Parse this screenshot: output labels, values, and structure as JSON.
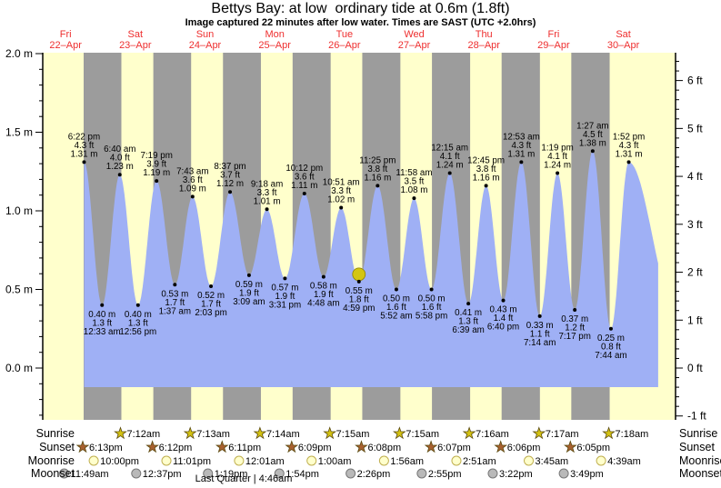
{
  "title": "Bettys Bay: at low  ordinary tide at 0.6m (1.8ft)",
  "subtitle": "Image captured 22 minutes after low water. Times are SAST (UTC +2.0hrs)",
  "colors": {
    "day_band": "#ffffcc",
    "night_band": "#9c9c9c",
    "tide_area": "#9fb0f5",
    "date_red": "#ee2e2e",
    "marker": "#d3c511",
    "marker_edge": "#8f8200",
    "sunrise_star": "#d3c212",
    "sunset_star": "#a8602f",
    "star_edge": "#5a4a10",
    "moonrise_moon": "#ffffcc",
    "moonrise_edge": "#bfae4e",
    "moonset_moon": "#b9b9b9",
    "moonset_edge": "#777777"
  },
  "chart_data": {
    "type": "area",
    "title": "Bettys Bay: at low  ordinary tide at 0.6m (1.8ft)",
    "subtitle": "Image captured 22 minutes after low water. Times are SAST (UTC +2.0hrs)",
    "ylabel_left_unit": "m",
    "ylabel_right_unit": "ft",
    "yticks_left_m": [
      2.0,
      1.5,
      1.0,
      0.5,
      0.0
    ],
    "yticks_right_ft": [
      6,
      5,
      4,
      3,
      2,
      1,
      0,
      -1
    ],
    "ylim_m": [
      -0.33,
      2.0
    ],
    "grid": false,
    "days": [
      {
        "name": "Fri",
        "date": "22–Apr"
      },
      {
        "name": "Sat",
        "date": "23–Apr"
      },
      {
        "name": "Sun",
        "date": "24–Apr"
      },
      {
        "name": "Mon",
        "date": "25–Apr"
      },
      {
        "name": "Tue",
        "date": "26–Apr"
      },
      {
        "name": "Wed",
        "date": "27–Apr"
      },
      {
        "name": "Thu",
        "date": "28–Apr"
      },
      {
        "name": "Fri",
        "date": "29–Apr"
      },
      {
        "name": "Sat",
        "date": "30–Apr"
      }
    ],
    "tides": [
      {
        "type": "high",
        "day": 0,
        "t": "18:22",
        "time": "6:22 pm",
        "ft": 4.3,
        "m": 1.31
      },
      {
        "type": "low",
        "day": 1,
        "t": "00:33",
        "time": "12:33 am",
        "ft": 1.3,
        "m": 0.4
      },
      {
        "type": "high",
        "day": 1,
        "t": "06:40",
        "time": "6:40 am",
        "ft": 4.0,
        "m": 1.23
      },
      {
        "type": "low",
        "day": 1,
        "t": "12:56",
        "time": "12:56 pm",
        "ft": 1.3,
        "m": 0.4
      },
      {
        "type": "high",
        "day": 1,
        "t": "19:19",
        "time": "7:19 pm",
        "ft": 3.9,
        "m": 1.19
      },
      {
        "type": "low",
        "day": 2,
        "t": "01:37",
        "time": "1:37 am",
        "ft": 1.7,
        "m": 0.53
      },
      {
        "type": "high",
        "day": 2,
        "t": "07:43",
        "time": "7:43 am",
        "ft": 3.6,
        "m": 1.09
      },
      {
        "type": "low",
        "day": 2,
        "t": "14:03",
        "time": "2:03 pm",
        "ft": 1.7,
        "m": 0.52
      },
      {
        "type": "high",
        "day": 2,
        "t": "20:37",
        "time": "8:37 pm",
        "ft": 3.7,
        "m": 1.12
      },
      {
        "type": "low",
        "day": 3,
        "t": "03:09",
        "time": "3:09 am",
        "ft": 1.9,
        "m": 0.59
      },
      {
        "type": "high",
        "day": 3,
        "t": "09:18",
        "time": "9:18 am",
        "ft": 3.3,
        "m": 1.01
      },
      {
        "type": "low",
        "day": 3,
        "t": "15:31",
        "time": "3:31 pm",
        "ft": 1.9,
        "m": 0.57
      },
      {
        "type": "high",
        "day": 3,
        "t": "22:12",
        "time": "10:12 pm",
        "ft": 3.6,
        "m": 1.11
      },
      {
        "type": "low",
        "day": 4,
        "t": "04:48",
        "time": "4:48 am",
        "ft": 1.9,
        "m": 0.58
      },
      {
        "type": "high",
        "day": 4,
        "t": "10:51",
        "time": "10:51 am",
        "ft": 3.3,
        "m": 1.02
      },
      {
        "type": "low",
        "day": 4,
        "t": "16:59",
        "time": "4:59 pm",
        "ft": 1.8,
        "m": 0.55
      },
      {
        "type": "high",
        "day": 4,
        "t": "23:25",
        "time": "11:25 pm",
        "ft": 3.8,
        "m": 1.16
      },
      {
        "type": "low",
        "day": 5,
        "t": "05:52",
        "time": "5:52 am",
        "ft": 1.6,
        "m": 0.5
      },
      {
        "type": "high",
        "day": 5,
        "t": "11:58",
        "time": "11:58 am",
        "ft": 3.5,
        "m": 1.08
      },
      {
        "type": "low",
        "day": 5,
        "t": "17:58",
        "time": "5:58 pm",
        "ft": 1.6,
        "m": 0.5
      },
      {
        "type": "high",
        "day": 6,
        "t": "00:15",
        "time": "12:15 am",
        "ft": 4.1,
        "m": 1.24
      },
      {
        "type": "low",
        "day": 6,
        "t": "06:39",
        "time": "6:39 am",
        "ft": 1.3,
        "m": 0.41
      },
      {
        "type": "high",
        "day": 6,
        "t": "12:45",
        "time": "12:45 pm",
        "ft": 3.8,
        "m": 1.16
      },
      {
        "type": "low",
        "day": 6,
        "t": "18:40",
        "time": "6:40 pm",
        "ft": 1.4,
        "m": 0.43
      },
      {
        "type": "high",
        "day": 7,
        "t": "00:53",
        "time": "12:53 am",
        "ft": 4.3,
        "m": 1.31
      },
      {
        "type": "low",
        "day": 7,
        "t": "07:14",
        "time": "7:14 am",
        "ft": 1.1,
        "m": 0.33
      },
      {
        "type": "high",
        "day": 7,
        "t": "13:19",
        "time": "1:19 pm",
        "ft": 4.1,
        "m": 1.24
      },
      {
        "type": "low",
        "day": 7,
        "t": "19:17",
        "time": "7:17 pm",
        "ft": 1.2,
        "m": 0.37
      },
      {
        "type": "high",
        "day": 8,
        "t": "01:27",
        "time": "1:27 am",
        "ft": 4.5,
        "m": 1.38
      },
      {
        "type": "low",
        "day": 8,
        "t": "07:44",
        "time": "7:44 am",
        "ft": 0.8,
        "m": 0.25
      },
      {
        "type": "high",
        "day": 8,
        "t": "13:52",
        "time": "1:52 pm",
        "ft": 4.3,
        "m": 1.31
      }
    ],
    "current_marker": {
      "day": 4,
      "time": "16:59",
      "m": 0.55
    },
    "astro": {
      "rows": [
        {
          "id": "sunrise",
          "label": "Sunrise",
          "icon": "sunrise-star",
          "events": [
            {
              "day": 1,
              "time": "07:12",
              "label": "7:12am"
            },
            {
              "day": 2,
              "time": "07:13",
              "label": "7:13am"
            },
            {
              "day": 3,
              "time": "07:14",
              "label": "7:14am"
            },
            {
              "day": 4,
              "time": "07:15",
              "label": "7:15am"
            },
            {
              "day": 5,
              "time": "07:15",
              "label": "7:15am"
            },
            {
              "day": 6,
              "time": "07:16",
              "label": "7:16am"
            },
            {
              "day": 7,
              "time": "07:17",
              "label": "7:17am"
            },
            {
              "day": 8,
              "time": "07:18",
              "label": "7:18am"
            }
          ]
        },
        {
          "id": "sunset",
          "label": "Sunset",
          "icon": "sunset-star",
          "events": [
            {
              "day": 0,
              "time": "18:13",
              "label": "6:13pm"
            },
            {
              "day": 1,
              "time": "18:12",
              "label": "6:12pm"
            },
            {
              "day": 2,
              "time": "18:11",
              "label": "6:11pm"
            },
            {
              "day": 3,
              "time": "18:09",
              "label": "6:09pm"
            },
            {
              "day": 4,
              "time": "18:08",
              "label": "6:08pm"
            },
            {
              "day": 5,
              "time": "18:07",
              "label": "6:07pm"
            },
            {
              "day": 6,
              "time": "18:06",
              "label": "6:06pm"
            },
            {
              "day": 7,
              "time": "18:05",
              "label": "6:05pm"
            }
          ]
        },
        {
          "id": "moonrise",
          "label": "Moonrise",
          "icon": "moonrise-circle",
          "events": [
            {
              "day": 0,
              "time": "22:00",
              "label": "10:00pm"
            },
            {
              "day": 1,
              "time": "23:01",
              "label": "11:01pm"
            },
            {
              "day": 3,
              "time": "00:01",
              "label": "12:01am"
            },
            {
              "day": 4,
              "time": "01:00",
              "label": "1:00am"
            },
            {
              "day": 5,
              "time": "01:56",
              "label": "1:56am"
            },
            {
              "day": 6,
              "time": "02:51",
              "label": "2:51am"
            },
            {
              "day": 7,
              "time": "03:45",
              "label": "3:45am"
            },
            {
              "day": 8,
              "time": "04:39",
              "label": "4:39am"
            }
          ]
        },
        {
          "id": "moonset",
          "label": "Moonset",
          "icon": "moonset-circle",
          "events": [
            {
              "day": 0,
              "time": "11:49",
              "label": "11:49am"
            },
            {
              "day": 1,
              "time": "12:37",
              "label": "12:37pm"
            },
            {
              "day": 2,
              "time": "13:19",
              "label": "1:19pm"
            },
            {
              "day": 3,
              "time": "13:54",
              "label": "1:54pm"
            },
            {
              "day": 4,
              "time": "14:26",
              "label": "2:26pm"
            },
            {
              "day": 5,
              "time": "14:55",
              "label": "2:55pm"
            },
            {
              "day": 6,
              "time": "15:22",
              "label": "3:22pm"
            },
            {
              "day": 7,
              "time": "15:49",
              "label": "3:49pm"
            }
          ]
        }
      ],
      "moon_phase": "Last Quarter | 4:46am"
    }
  }
}
